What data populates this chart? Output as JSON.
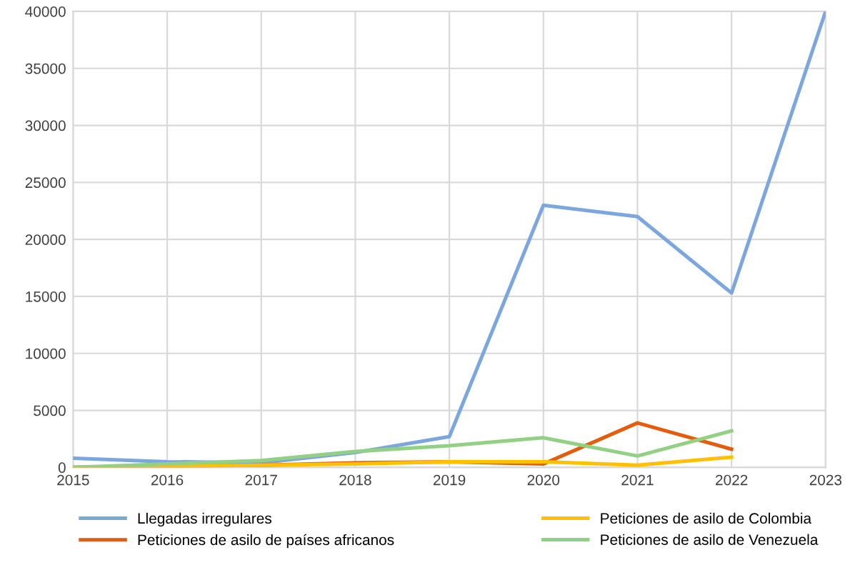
{
  "chart_data": {
    "type": "line",
    "x": [
      2015,
      2016,
      2017,
      2018,
      2019,
      2020,
      2021,
      2022,
      2023
    ],
    "series": [
      {
        "name": "Llegadas irregulares",
        "color": "#7ba7de",
        "values": [
          800,
          500,
          400,
          1300,
          2700,
          23000,
          22000,
          15300,
          40000
        ]
      },
      {
        "name": "Peticiones de asilo de países africanos",
        "color": "#e35d0c",
        "values": [
          0,
          100,
          200,
          400,
          500,
          300,
          3900,
          1600,
          null
        ]
      },
      {
        "name": "Peticiones de asilo de Colombia",
        "color": "#ffc000",
        "values": [
          0,
          100,
          200,
          300,
          500,
          500,
          200,
          900,
          null
        ]
      },
      {
        "name": "Peticiones de asilo de Venezuela",
        "color": "#92d183",
        "values": [
          0,
          300,
          600,
          1400,
          1900,
          2600,
          1000,
          3200,
          null
        ]
      }
    ],
    "xlim": [
      2015,
      2023
    ],
    "xticks": [
      2015,
      2016,
      2017,
      2018,
      2019,
      2020,
      2021,
      2022,
      2023
    ],
    "ylim": [
      0,
      40000
    ],
    "yticks": [
      0,
      5000,
      10000,
      15000,
      20000,
      25000,
      30000,
      35000,
      40000
    ],
    "grid": true,
    "legend": "bottom",
    "marker": "none",
    "line_style": "solid"
  }
}
